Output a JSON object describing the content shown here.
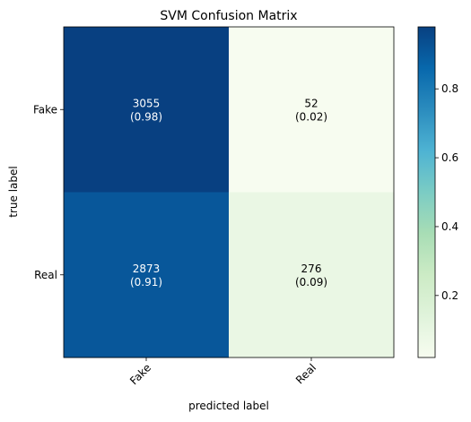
{
  "chart_data": {
    "type": "heatmap",
    "title": "SVM Confusion Matrix",
    "xlabel": "predicted label",
    "ylabel": "true label",
    "x_categories": [
      "Fake",
      "Real"
    ],
    "y_categories": [
      "Fake",
      "Real"
    ],
    "cells": [
      [
        {
          "count": 3055,
          "fraction": 0.98,
          "count_label": "3055",
          "fraction_label": "(0.98)"
        },
        {
          "count": 52,
          "fraction": 0.02,
          "count_label": "52",
          "fraction_label": "(0.02)"
        }
      ],
      [
        {
          "count": 2873,
          "fraction": 0.91,
          "count_label": "2873",
          "fraction_label": "(0.91)"
        },
        {
          "count": 276,
          "fraction": 0.09,
          "count_label": "276",
          "fraction_label": "(0.09)"
        }
      ]
    ],
    "colormap": "GnBu",
    "colorbar": {
      "range": [
        0.02,
        0.98
      ],
      "ticks": [
        0.2,
        0.4,
        0.6,
        0.8
      ],
      "tick_labels": [
        "0.2",
        "0.4",
        "0.6",
        "0.8"
      ]
    },
    "grid": false
  }
}
